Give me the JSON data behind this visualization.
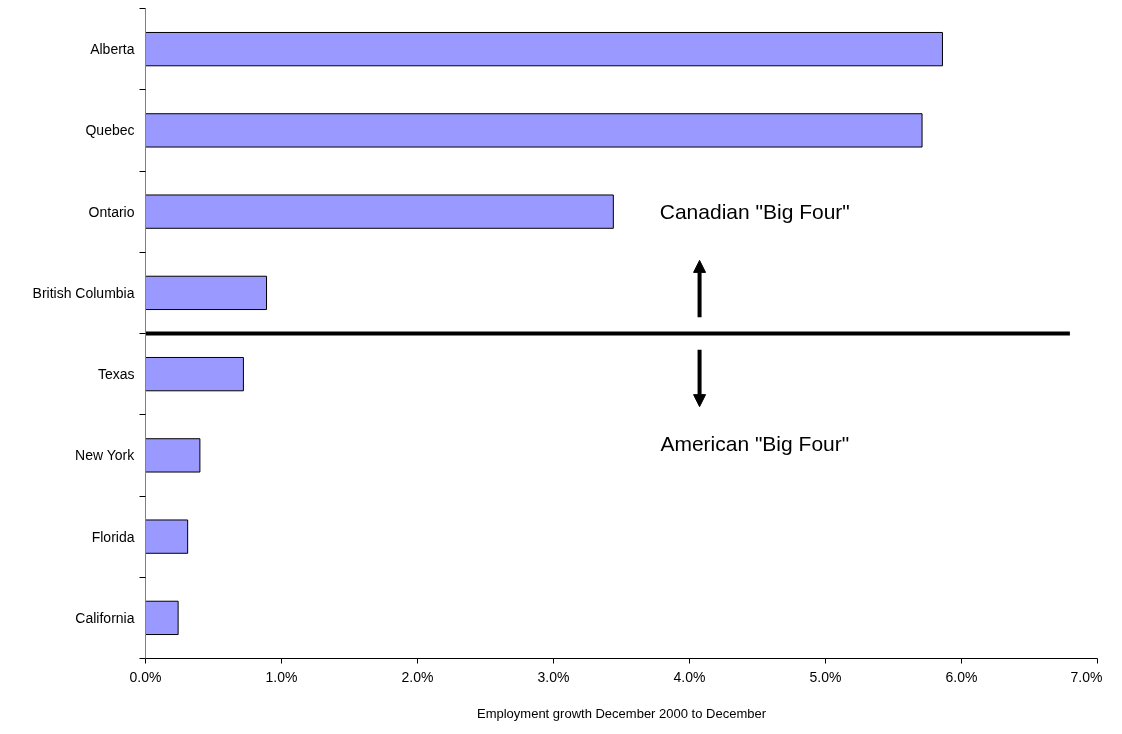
{
  "chart_data": {
    "type": "bar",
    "orientation": "horizontal",
    "xlabel": "Employment growth December 2000 to December",
    "categories": [
      "Alberta",
      "Quebec",
      "Ontario",
      "British Columbia",
      "Texas",
      "New York",
      "Florida",
      "California"
    ],
    "values": [
      5.86,
      5.71,
      3.44,
      0.89,
      0.72,
      0.4,
      0.31,
      0.24
    ],
    "color": "#9999ff",
    "xlim": [
      0,
      7
    ],
    "xticks": [
      {
        "value": 0,
        "label": "0.0%"
      },
      {
        "value": 1,
        "label": "1.0%"
      },
      {
        "value": 2,
        "label": "2.0%"
      },
      {
        "value": 3,
        "label": "3.0%"
      },
      {
        "value": 4,
        "label": "4.0%"
      },
      {
        "value": 5,
        "label": "5.0%"
      },
      {
        "value": 6,
        "label": "6.0%"
      },
      {
        "value": 7,
        "label": "7.0%"
      }
    ],
    "grid": false,
    "annotations": [
      "Canadian \"Big Four\"",
      "American \"Big Four\""
    ]
  }
}
